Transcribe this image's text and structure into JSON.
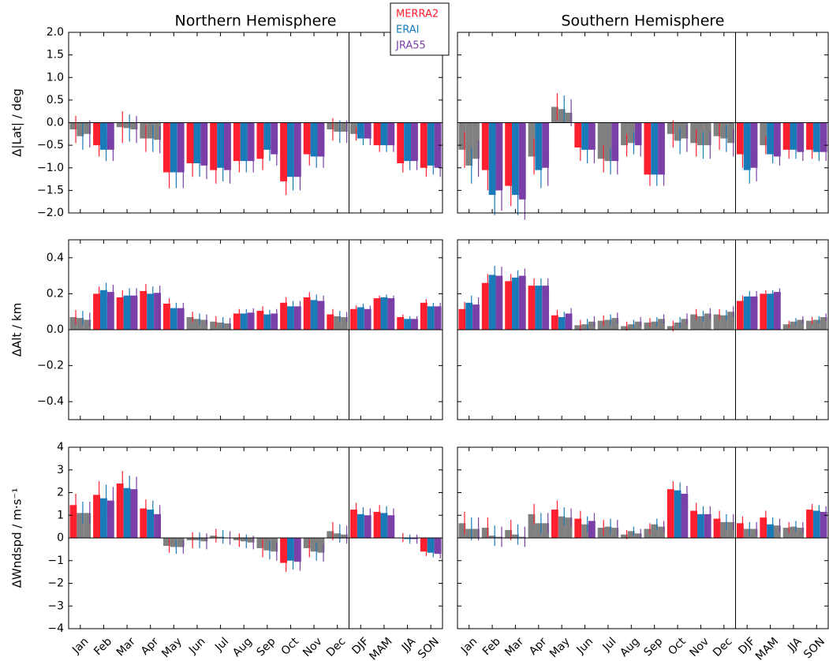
{
  "chart_data": [
    {
      "type": "bar",
      "title": "Northern Hemisphere",
      "y_label": "Δ|Lat| / deg",
      "ylim": [
        -2,
        2
      ],
      "yticks": [
        {
          "value": -2,
          "label": "−2.0"
        },
        {
          "value": -1.5,
          "label": "−1.5"
        },
        {
          "value": -1,
          "label": "−1.0"
        },
        {
          "value": -0.5,
          "label": "−0.5"
        },
        {
          "value": 0,
          "label": "0.0"
        },
        {
          "value": 0.5,
          "label": "0.5"
        },
        {
          "value": 1,
          "label": "1.0"
        },
        {
          "value": 1.5,
          "label": "1.5"
        },
        {
          "value": 2,
          "label": "2.0"
        }
      ],
      "gray_color": "#808080",
      "series": [
        {
          "name": "MERRA2",
          "color": "#ff1f2f",
          "values": [
            -0.15,
            -0.5,
            -0.1,
            -0.35,
            -1.1,
            -0.9,
            -1.05,
            -0.85,
            -0.8,
            -1.3,
            -0.7,
            -0.15,
            -0.25,
            -0.5,
            -0.9,
            -1.0
          ],
          "errors": [
            0.3,
            0.25,
            0.35,
            0.3,
            0.35,
            0.3,
            0.3,
            0.25,
            0.25,
            0.3,
            0.25,
            0.25,
            0.15,
            0.15,
            0.2,
            0.2
          ],
          "gray": [
            0,
            2,
            3,
            11,
            12
          ]
        },
        {
          "name": "ERAI",
          "color": "#1a7ab8",
          "values": [
            -0.3,
            -0.6,
            -0.12,
            -0.35,
            -1.1,
            -0.9,
            -1.0,
            -0.85,
            -0.6,
            -1.2,
            -0.75,
            -0.2,
            -0.35,
            -0.5,
            -0.85,
            -0.95
          ],
          "errors": [
            0.3,
            0.25,
            0.3,
            0.3,
            0.35,
            0.3,
            0.3,
            0.25,
            0.25,
            0.3,
            0.25,
            0.25,
            0.15,
            0.15,
            0.2,
            0.2
          ],
          "gray": [
            0,
            2,
            3,
            11
          ]
        },
        {
          "name": "JRA55",
          "color": "#7b3fa8",
          "values": [
            -0.25,
            -0.6,
            -0.15,
            -0.38,
            -1.1,
            -0.95,
            -1.05,
            -0.85,
            -0.7,
            -1.2,
            -0.75,
            -0.2,
            -0.35,
            -0.5,
            -0.85,
            -1.0
          ],
          "errors": [
            0.3,
            0.25,
            0.3,
            0.3,
            0.35,
            0.3,
            0.3,
            0.25,
            0.25,
            0.3,
            0.25,
            0.25,
            0.15,
            0.15,
            0.2,
            0.2
          ],
          "gray": [
            0,
            2,
            3,
            11
          ]
        }
      ]
    },
    {
      "type": "bar",
      "title": "Southern Hemisphere",
      "ylim": [
        -2,
        2
      ],
      "series": [
        {
          "values": [
            -0.6,
            -1.05,
            -1.4,
            -0.75,
            0.35,
            -0.55,
            -0.8,
            -0.5,
            -1.15,
            -0.25,
            -0.45,
            -0.3,
            -0.7,
            -0.5,
            -0.6,
            -0.6
          ],
          "errors": [
            0.4,
            0.45,
            0.45,
            0.4,
            0.3,
            0.3,
            0.3,
            0.25,
            0.25,
            0.3,
            0.3,
            0.3,
            0.3,
            0.2,
            0.2,
            0.2
          ],
          "gray": [
            0,
            3,
            4,
            6,
            7,
            9,
            10,
            11,
            13
          ]
        },
        {
          "values": [
            -0.95,
            -1.6,
            -1.6,
            -1.05,
            0.3,
            -0.6,
            -0.85,
            -0.45,
            -1.15,
            -0.4,
            -0.5,
            -0.35,
            -1.05,
            -0.7,
            -0.6,
            -0.65
          ],
          "errors": [
            0.4,
            0.45,
            0.45,
            0.4,
            0.3,
            0.3,
            0.3,
            0.25,
            0.25,
            0.3,
            0.3,
            0.3,
            0.3,
            0.2,
            0.2,
            0.2
          ],
          "gray": [
            0,
            4,
            6,
            7,
            9,
            10,
            11
          ]
        },
        {
          "values": [
            -0.8,
            -1.5,
            -1.7,
            -1.0,
            0.22,
            -0.6,
            -0.85,
            -0.5,
            -1.15,
            -0.35,
            -0.5,
            -0.45,
            -1.0,
            -0.75,
            -0.65,
            -0.65
          ],
          "errors": [
            0.4,
            0.45,
            0.45,
            0.4,
            0.3,
            0.3,
            0.3,
            0.25,
            0.25,
            0.3,
            0.3,
            0.3,
            0.3,
            0.2,
            0.2,
            0.2
          ],
          "gray": [
            0,
            4,
            9,
            10,
            11
          ]
        }
      ]
    },
    {
      "type": "bar",
      "y_label": "ΔAlt / km",
      "ylim": [
        -0.5,
        0.5
      ],
      "yticks": [
        {
          "value": -0.4,
          "label": "−0.4"
        },
        {
          "value": -0.2,
          "label": "−0.2"
        },
        {
          "value": 0,
          "label": "0.0"
        },
        0.2,
        0.4
      ],
      "series": [
        {
          "values": [
            0.07,
            0.2,
            0.18,
            0.215,
            0.145,
            0.07,
            0.045,
            0.09,
            0.105,
            0.15,
            0.18,
            0.085,
            0.115,
            0.175,
            0.07,
            0.15
          ],
          "errors": [
            0.04,
            0.04,
            0.04,
            0.04,
            0.03,
            0.03,
            0.03,
            0.025,
            0.025,
            0.03,
            0.03,
            0.03,
            0.02,
            0.015,
            0.015,
            0.02
          ],
          "gray": [
            0,
            5,
            6
          ]
        },
        {
          "values": [
            0.065,
            0.22,
            0.19,
            0.2,
            0.12,
            0.06,
            0.04,
            0.09,
            0.085,
            0.13,
            0.165,
            0.075,
            0.125,
            0.18,
            0.06,
            0.13
          ],
          "errors": [
            0.04,
            0.04,
            0.04,
            0.04,
            0.03,
            0.03,
            0.03,
            0.025,
            0.025,
            0.03,
            0.03,
            0.03,
            0.02,
            0.015,
            0.015,
            0.02
          ],
          "gray": [
            0,
            5,
            6,
            11
          ]
        },
        {
          "values": [
            0.055,
            0.21,
            0.19,
            0.205,
            0.12,
            0.055,
            0.035,
            0.095,
            0.09,
            0.13,
            0.16,
            0.07,
            0.115,
            0.175,
            0.06,
            0.13
          ],
          "errors": [
            0.04,
            0.04,
            0.04,
            0.04,
            0.03,
            0.03,
            0.03,
            0.025,
            0.025,
            0.03,
            0.03,
            0.03,
            0.02,
            0.015,
            0.015,
            0.02
          ],
          "gray": [
            0,
            5,
            6,
            11
          ]
        }
      ]
    },
    {
      "type": "bar",
      "ylim": [
        -0.5,
        0.5
      ],
      "series": [
        {
          "values": [
            0.115,
            0.26,
            0.27,
            0.245,
            0.08,
            0.025,
            0.05,
            0.02,
            0.04,
            0.02,
            0.085,
            0.085,
            0.16,
            0.2,
            0.03,
            0.05
          ],
          "errors": [
            0.04,
            0.05,
            0.04,
            0.04,
            0.03,
            0.03,
            0.03,
            0.025,
            0.025,
            0.03,
            0.03,
            0.03,
            0.03,
            0.02,
            0.02,
            0.02
          ],
          "gray": [
            5,
            6,
            7,
            8,
            9,
            10,
            11,
            14,
            15
          ]
        },
        {
          "values": [
            0.15,
            0.305,
            0.29,
            0.245,
            0.07,
            0.03,
            0.055,
            0.03,
            0.045,
            0.04,
            0.075,
            0.08,
            0.185,
            0.2,
            0.045,
            0.055
          ],
          "errors": [
            0.04,
            0.05,
            0.04,
            0.04,
            0.03,
            0.03,
            0.03,
            0.025,
            0.025,
            0.03,
            0.03,
            0.03,
            0.03,
            0.02,
            0.02,
            0.02
          ],
          "gray": [
            5,
            6,
            7,
            8,
            9,
            10,
            11,
            14,
            15
          ]
        },
        {
          "values": [
            0.14,
            0.3,
            0.3,
            0.245,
            0.09,
            0.045,
            0.065,
            0.045,
            0.06,
            0.06,
            0.09,
            0.1,
            0.185,
            0.21,
            0.055,
            0.07
          ],
          "errors": [
            0.04,
            0.05,
            0.04,
            0.04,
            0.03,
            0.03,
            0.03,
            0.025,
            0.025,
            0.03,
            0.03,
            0.03,
            0.03,
            0.02,
            0.02,
            0.02
          ],
          "gray": [
            5,
            6,
            7,
            8,
            9,
            10,
            11,
            14,
            15
          ]
        }
      ]
    },
    {
      "type": "bar",
      "y_label": "ΔWndspd / m·s⁻¹",
      "ylim": [
        -4,
        4
      ],
      "yticks": [
        {
          "value": -4,
          "label": "−4"
        },
        {
          "value": -3,
          "label": "−3"
        },
        {
          "value": -2,
          "label": "−2"
        },
        {
          "value": -1,
          "label": "−1"
        },
        0,
        1,
        2,
        3,
        4
      ],
      "categories": [
        "Jan",
        "Feb",
        "Mar",
        "Apr",
        "May",
        "Jun",
        "Jul",
        "Aug",
        "Sep",
        "Oct",
        "Nov",
        "Dec",
        "DJF",
        "MAM",
        "JJA",
        "SON"
      ],
      "series": [
        {
          "values": [
            1.45,
            1.9,
            2.4,
            1.3,
            -0.35,
            -0.1,
            0.1,
            -0.1,
            -0.45,
            -1.1,
            -0.45,
            0.3,
            1.25,
            1.15,
            0.02,
            -0.6
          ],
          "errors": [
            0.5,
            0.6,
            0.55,
            0.4,
            0.3,
            0.35,
            0.3,
            0.3,
            0.4,
            0.4,
            0.4,
            0.4,
            0.3,
            0.3,
            0.2,
            0.2
          ],
          "gray": [
            4,
            5,
            6,
            7,
            8,
            10,
            11,
            14
          ]
        },
        {
          "values": [
            1.1,
            1.75,
            2.2,
            1.25,
            -0.4,
            -0.1,
            0.05,
            -0.15,
            -0.55,
            -1.0,
            -0.6,
            0.2,
            1.05,
            1.1,
            -0.05,
            -0.65
          ],
          "errors": [
            0.5,
            0.6,
            0.55,
            0.4,
            0.3,
            0.35,
            0.3,
            0.3,
            0.4,
            0.4,
            0.4,
            0.4,
            0.3,
            0.3,
            0.2,
            0.2
          ],
          "gray": [
            0,
            4,
            5,
            6,
            7,
            8,
            10,
            11
          ]
        },
        {
          "values": [
            1.1,
            1.65,
            2.15,
            1.05,
            -0.4,
            -0.15,
            0.0,
            -0.2,
            -0.6,
            -1.05,
            -0.65,
            0.15,
            1.0,
            1.0,
            -0.05,
            -0.7
          ],
          "errors": [
            0.5,
            0.6,
            0.55,
            0.4,
            0.3,
            0.35,
            0.3,
            0.3,
            0.4,
            0.4,
            0.4,
            0.4,
            0.3,
            0.3,
            0.2,
            0.2
          ],
          "gray": [
            0,
            4,
            5,
            6,
            7,
            8,
            10,
            11
          ]
        }
      ]
    },
    {
      "type": "bar",
      "ylim": [
        -4,
        4
      ],
      "categories": [
        "Jan",
        "Feb",
        "Mar",
        "Apr",
        "May",
        "Jun",
        "Jul",
        "Aug",
        "Sep",
        "Oct",
        "Nov",
        "Dec",
        "DJF",
        "MAM",
        "JJA",
        "SON"
      ],
      "series": [
        {
          "values": [
            0.65,
            0.45,
            0.35,
            1.05,
            1.25,
            0.85,
            0.45,
            0.15,
            0.4,
            2.15,
            1.2,
            0.85,
            0.65,
            0.9,
            0.45,
            1.25
          ],
          "errors": [
            0.5,
            0.45,
            0.45,
            0.45,
            0.4,
            0.35,
            0.35,
            0.2,
            0.25,
            0.35,
            0.35,
            0.35,
            0.3,
            0.3,
            0.25,
            0.25
          ],
          "gray": [
            0,
            1,
            2,
            3,
            6,
            7,
            8,
            14
          ]
        },
        {
          "values": [
            0.4,
            0.1,
            0.15,
            0.65,
            0.95,
            0.6,
            0.5,
            0.3,
            0.6,
            2.1,
            1.05,
            0.7,
            0.4,
            0.6,
            0.5,
            1.2
          ],
          "errors": [
            0.5,
            0.45,
            0.45,
            0.45,
            0.4,
            0.35,
            0.35,
            0.2,
            0.25,
            0.35,
            0.35,
            0.35,
            0.3,
            0.3,
            0.25,
            0.25
          ],
          "gray": [
            0,
            1,
            2,
            3,
            4,
            5,
            6,
            7,
            8,
            11,
            12,
            14
          ]
        },
        {
          "values": [
            0.4,
            0.05,
            0.05,
            0.65,
            0.9,
            0.75,
            0.45,
            0.2,
            0.5,
            1.95,
            1.05,
            0.7,
            0.4,
            0.55,
            0.45,
            1.15
          ],
          "errors": [
            0.5,
            0.45,
            0.45,
            0.45,
            0.4,
            0.35,
            0.35,
            0.2,
            0.25,
            0.35,
            0.35,
            0.35,
            0.3,
            0.3,
            0.25,
            0.25
          ],
          "gray": [
            0,
            1,
            2,
            3,
            4,
            6,
            7,
            8,
            11,
            12,
            13,
            14
          ]
        }
      ]
    }
  ]
}
